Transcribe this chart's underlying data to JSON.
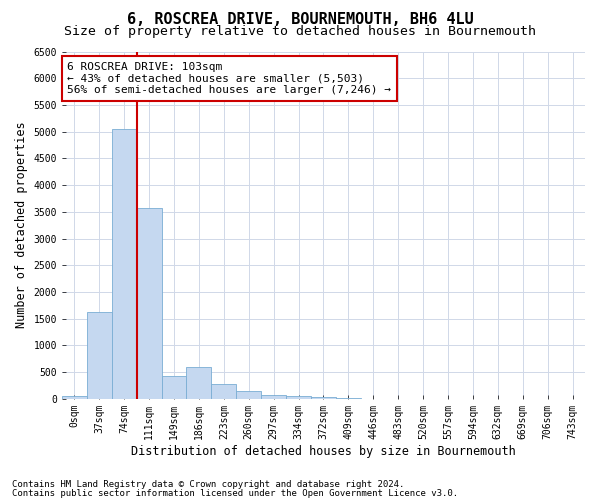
{
  "title": "6, ROSCREA DRIVE, BOURNEMOUTH, BH6 4LU",
  "subtitle": "Size of property relative to detached houses in Bournemouth",
  "xlabel": "Distribution of detached houses by size in Bournemouth",
  "ylabel": "Number of detached properties",
  "bar_labels": [
    "0sqm",
    "37sqm",
    "74sqm",
    "111sqm",
    "149sqm",
    "186sqm",
    "223sqm",
    "260sqm",
    "297sqm",
    "334sqm",
    "372sqm",
    "409sqm",
    "446sqm",
    "483sqm",
    "520sqm",
    "557sqm",
    "594sqm",
    "632sqm",
    "669sqm",
    "706sqm",
    "743sqm"
  ],
  "bar_values": [
    50,
    1620,
    5050,
    3580,
    430,
    600,
    270,
    150,
    80,
    50,
    25,
    15,
    0,
    0,
    0,
    0,
    0,
    0,
    0,
    0,
    0
  ],
  "bar_color": "#c5d8f0",
  "bar_edge_color": "#7aadd4",
  "vline_color": "#cc0000",
  "ylim": [
    0,
    6500
  ],
  "yticks": [
    0,
    500,
    1000,
    1500,
    2000,
    2500,
    3000,
    3500,
    4000,
    4500,
    5000,
    5500,
    6000,
    6500
  ],
  "annotation_line1": "6 ROSCREA DRIVE: 103sqm",
  "annotation_line2": "← 43% of detached houses are smaller (5,503)",
  "annotation_line3": "56% of semi-detached houses are larger (7,246) →",
  "annotation_box_color": "#ffffff",
  "annotation_box_edge_color": "#cc0000",
  "footnote1": "Contains HM Land Registry data © Crown copyright and database right 2024.",
  "footnote2": "Contains public sector information licensed under the Open Government Licence v3.0.",
  "bg_color": "#ffffff",
  "plot_bg_color": "#ffffff",
  "grid_color": "#d0d8e8",
  "title_fontsize": 11,
  "subtitle_fontsize": 9.5,
  "axis_label_fontsize": 8.5,
  "tick_fontsize": 7,
  "annotation_fontsize": 8,
  "footnote_fontsize": 6.5
}
